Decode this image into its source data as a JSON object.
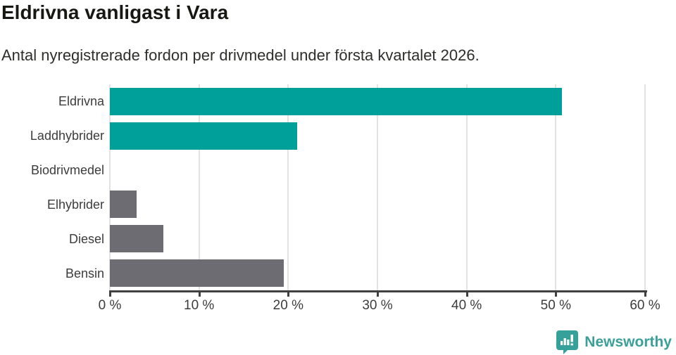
{
  "chart_data": {
    "type": "bar",
    "orientation": "horizontal",
    "title": "Eldrivna vanligast i Vara",
    "subtitle": "Antal nyregistrerade fordon per drivmedel under första kvartalet 2026.",
    "categories": [
      "Eldrivna",
      "Laddhybrider",
      "Biodrivmedel",
      "Elhybrider",
      "Diesel",
      "Bensin"
    ],
    "values": [
      50.7,
      21,
      0,
      3,
      6,
      19.5
    ],
    "unit": "%",
    "xlabel": "",
    "ylabel": "",
    "xlim": [
      0,
      60
    ],
    "x_tick_values": [
      0,
      10,
      20,
      30,
      40,
      50,
      60
    ],
    "x_tick_labels": [
      "0 %",
      "10 %",
      "20 %",
      "30 %",
      "40 %",
      "50 %",
      "60 %"
    ],
    "grid": true,
    "legend": "none",
    "bar_colors": [
      "#00a09a",
      "#00a09a",
      "#6c6c72",
      "#6c6c72",
      "#6c6c72",
      "#6c6c72"
    ],
    "highlight_color": "#00a09a",
    "default_color": "#6c6c72",
    "gridline_color": "#e2e2e2",
    "axis_color": "#404040"
  },
  "footer": {
    "brand": "Newsworthy",
    "brand_color": "#3ca09a",
    "logo_icon": "newsworthy-speech-bubble-barchart-icon"
  }
}
